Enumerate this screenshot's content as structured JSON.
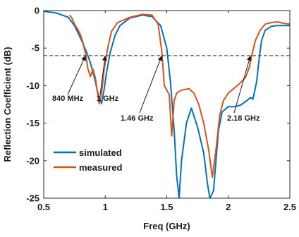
{
  "chart_data": {
    "type": "line",
    "xlabel": "Freq (GHz)",
    "ylabel": "Reflection Coefficient (dB)",
    "xlim": [
      0.5,
      2.5
    ],
    "ylim": [
      -25,
      0
    ],
    "x_ticks": [
      0.5,
      1,
      1.5,
      2,
      2.5
    ],
    "y_ticks": [
      0,
      -5,
      -10,
      -15,
      -20,
      -25
    ],
    "x_tick_labels": [
      "0.5",
      "1",
      "1.5",
      "2",
      "2.5"
    ],
    "y_tick_labels": [
      "0",
      "-5",
      "-10",
      "-15",
      "-20",
      "-25"
    ],
    "reference_line": {
      "y": -6,
      "style": "dashed"
    },
    "legend": {
      "placement": "bottom-left"
    },
    "series": [
      {
        "name": "simulated",
        "color": "#0072BD",
        "points": [
          [
            0.5,
            -0.1
          ],
          [
            0.6,
            -0.3
          ],
          [
            0.7,
            -0.9
          ],
          [
            0.75,
            -2.0
          ],
          [
            0.8,
            -3.7
          ],
          [
            0.85,
            -5.6
          ],
          [
            0.88,
            -7.0
          ],
          [
            0.91,
            -8.8
          ],
          [
            0.94,
            -11.0
          ],
          [
            0.97,
            -12.4
          ],
          [
            0.99,
            -10.6
          ],
          [
            1.01,
            -8.3
          ],
          [
            1.04,
            -5.6
          ],
          [
            1.08,
            -3.3
          ],
          [
            1.12,
            -2.0
          ],
          [
            1.2,
            -1.0
          ],
          [
            1.3,
            -0.6
          ],
          [
            1.38,
            -0.8
          ],
          [
            1.45,
            -2.0
          ],
          [
            1.5,
            -5.0
          ],
          [
            1.53,
            -9.5
          ],
          [
            1.56,
            -16.0
          ],
          [
            1.58,
            -22.0
          ],
          [
            1.6,
            -25.0
          ],
          [
            1.62,
            -20.0
          ],
          [
            1.66,
            -15.0
          ],
          [
            1.7,
            -13.0
          ],
          [
            1.75,
            -15.5
          ],
          [
            1.8,
            -19.0
          ],
          [
            1.83,
            -23.0
          ],
          [
            1.85,
            -25.0
          ],
          [
            1.88,
            -24.0
          ],
          [
            1.92,
            -16.0
          ],
          [
            1.95,
            -13.5
          ],
          [
            2.0,
            -12.8
          ],
          [
            2.05,
            -12.8
          ],
          [
            2.1,
            -12.6
          ],
          [
            2.15,
            -12.0
          ],
          [
            2.18,
            -11.6
          ],
          [
            2.2,
            -11.8
          ],
          [
            2.23,
            -9.5
          ],
          [
            2.25,
            -6.5
          ],
          [
            2.27,
            -4.0
          ],
          [
            2.3,
            -2.6
          ],
          [
            2.35,
            -2.1
          ],
          [
            2.4,
            -2.0
          ],
          [
            2.5,
            -2.0
          ]
        ]
      },
      {
        "name": "measured",
        "color": "#D95319",
        "points": [
          [
            0.71,
            -0.6
          ],
          [
            0.73,
            -1.0
          ],
          [
            0.75,
            -1.8
          ],
          [
            0.78,
            -2.6
          ],
          [
            0.8,
            -3.3
          ],
          [
            0.82,
            -4.3
          ],
          [
            0.84,
            -5.8
          ],
          [
            0.86,
            -7.8
          ],
          [
            0.88,
            -8.8
          ],
          [
            0.9,
            -7.8
          ],
          [
            0.92,
            -9.0
          ],
          [
            0.95,
            -12.4
          ],
          [
            0.97,
            -11.0
          ],
          [
            0.99,
            -8.0
          ],
          [
            1.02,
            -5.0
          ],
          [
            1.05,
            -2.8
          ],
          [
            1.1,
            -1.6
          ],
          [
            1.2,
            -0.9
          ],
          [
            1.3,
            -0.5
          ],
          [
            1.38,
            -0.6
          ],
          [
            1.43,
            -1.8
          ],
          [
            1.46,
            -5.5
          ],
          [
            1.48,
            -10.0
          ],
          [
            1.5,
            -10.6
          ],
          [
            1.52,
            -11.2
          ],
          [
            1.54,
            -16.7
          ],
          [
            1.56,
            -12.0
          ],
          [
            1.58,
            -11.0
          ],
          [
            1.62,
            -10.6
          ],
          [
            1.68,
            -10.4
          ],
          [
            1.72,
            -11.0
          ],
          [
            1.76,
            -12.5
          ],
          [
            1.8,
            -15.0
          ],
          [
            1.84,
            -18.5
          ],
          [
            1.87,
            -22.2
          ],
          [
            1.9,
            -18.5
          ],
          [
            1.93,
            -14.0
          ],
          [
            1.96,
            -12.0
          ],
          [
            2.0,
            -11.0
          ],
          [
            2.05,
            -10.3
          ],
          [
            2.1,
            -9.6
          ],
          [
            2.14,
            -8.9
          ],
          [
            2.17,
            -7.6
          ],
          [
            2.19,
            -6.0
          ],
          [
            2.22,
            -4.0
          ],
          [
            2.26,
            -2.6
          ],
          [
            2.3,
            -1.8
          ],
          [
            2.35,
            -1.6
          ],
          [
            2.4,
            -1.5
          ],
          [
            2.45,
            -1.7
          ],
          [
            2.5,
            -1.8
          ]
        ]
      }
    ],
    "annotations": [
      {
        "text": "840 MHz",
        "x": 0.84,
        "y": -6
      },
      {
        "text": "1 GHz",
        "x": 1.0,
        "y": -6
      },
      {
        "text": "1.46 GHz",
        "x": 1.46,
        "y": -6
      },
      {
        "text": "2.18 GHz",
        "x": 2.18,
        "y": -6
      }
    ]
  }
}
